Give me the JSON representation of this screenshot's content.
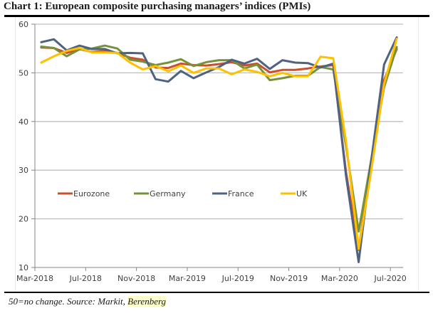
{
  "title": "Chart 1: European composite purchasing managers’ indices (PMIs)",
  "footnote": {
    "text": "50=no change. Source: Markit, ",
    "highlighted": "Berenberg"
  },
  "chart_data": {
    "type": "line",
    "title": "Chart 1: European composite purchasing managers’ indices (PMIs)",
    "xlabel": "",
    "ylabel": "",
    "ylim": [
      10,
      60
    ],
    "yticks": [
      10,
      20,
      30,
      40,
      50,
      60
    ],
    "xtick_labels": [
      "Mar-2018",
      "Jul-2018",
      "Nov-2018",
      "Mar-2019",
      "Jul-2019",
      "Nov-2019",
      "Mar-2020",
      "Jul-2020"
    ],
    "grid": true,
    "legend_position": "center-left",
    "x": [
      "Mar-2018",
      "Apr-2018",
      "May-2018",
      "Jun-2018",
      "Jul-2018",
      "Aug-2018",
      "Sep-2018",
      "Oct-2018",
      "Nov-2018",
      "Dec-2018",
      "Jan-2019",
      "Feb-2019",
      "Mar-2019",
      "Apr-2019",
      "May-2019",
      "Jun-2019",
      "Jul-2019",
      "Aug-2019",
      "Sep-2019",
      "Oct-2019",
      "Nov-2019",
      "Dec-2019",
      "Jan-2020",
      "Feb-2020",
      "Mar-2020",
      "Apr-2020",
      "May-2020",
      "Jun-2020",
      "Jul-2020"
    ],
    "series": [
      {
        "name": "Eurozone",
        "color": "#c9502a",
        "values": [
          55.2,
          55.1,
          54.1,
          54.9,
          54.3,
          54.5,
          54.1,
          53.1,
          52.7,
          51.1,
          51.0,
          51.9,
          51.6,
          51.5,
          51.8,
          52.2,
          51.5,
          51.9,
          50.1,
          50.6,
          50.6,
          50.9,
          51.3,
          51.6,
          29.7,
          13.6,
          31.9,
          48.5,
          54.9
        ]
      },
      {
        "name": "Germany",
        "color": "#76933c",
        "values": [
          55.4,
          55.1,
          53.4,
          54.8,
          55.0,
          55.6,
          55.0,
          52.7,
          52.3,
          51.6,
          52.1,
          52.8,
          51.4,
          52.2,
          52.6,
          52.6,
          50.9,
          51.7,
          48.5,
          48.9,
          49.4,
          49.4,
          51.2,
          50.7,
          35.0,
          17.4,
          32.3,
          47.0,
          55.3
        ]
      },
      {
        "name": "France",
        "color": "#4f6282",
        "values": [
          56.3,
          56.9,
          54.6,
          55.6,
          54.9,
          54.9,
          54.0,
          54.1,
          54.0,
          48.7,
          48.2,
          50.4,
          48.9,
          50.1,
          51.2,
          52.7,
          51.9,
          52.9,
          50.8,
          52.6,
          52.1,
          52.0,
          51.1,
          51.9,
          28.9,
          11.1,
          32.1,
          51.7,
          57.3
        ]
      },
      {
        "name": "UK",
        "color": "#ffc000",
        "values": [
          52.1,
          53.4,
          54.5,
          55.1,
          54.2,
          54.2,
          54.1,
          52.1,
          50.7,
          51.4,
          50.3,
          51.5,
          50.0,
          50.9,
          50.9,
          49.7,
          50.7,
          50.2,
          49.3,
          50.0,
          49.3,
          49.3,
          53.3,
          53.0,
          36.0,
          13.8,
          30.0,
          47.7,
          57.0
        ]
      }
    ]
  }
}
